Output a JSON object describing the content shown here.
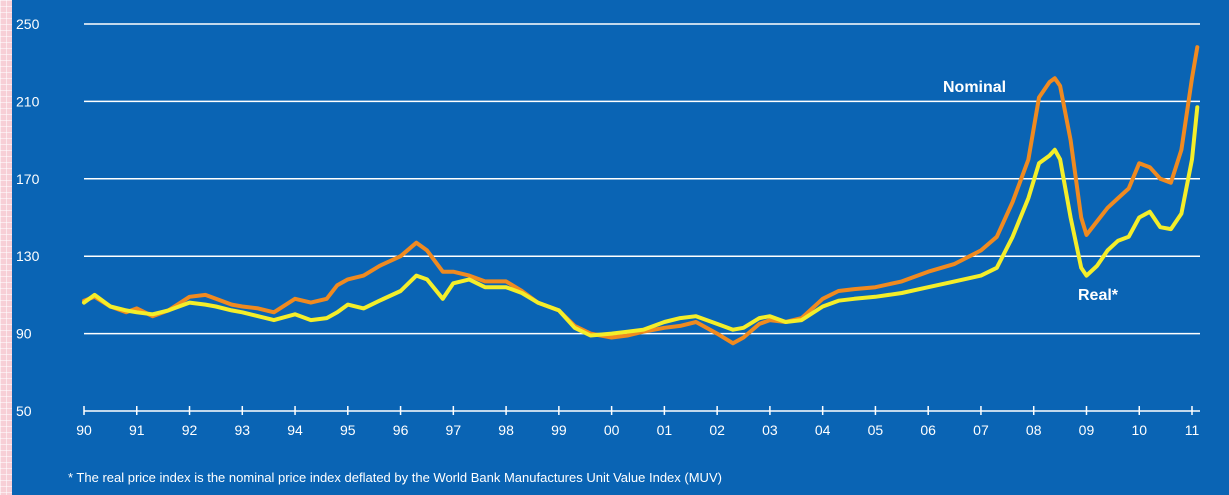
{
  "chart_data": {
    "type": "line",
    "xlabel": "",
    "ylabel": "",
    "xlim": [
      1990,
      2011
    ],
    "ylim": [
      50,
      250
    ],
    "x_ticks": [
      1990,
      1991,
      1992,
      1993,
      1994,
      1995,
      1996,
      1997,
      1998,
      1999,
      2000,
      2001,
      2002,
      2003,
      2004,
      2005,
      2006,
      2007,
      2008,
      2009,
      2010,
      2011
    ],
    "x_tick_labels": [
      "90",
      "91",
      "92",
      "93",
      "94",
      "95",
      "96",
      "97",
      "98",
      "99",
      "00",
      "01",
      "02",
      "03",
      "04",
      "05",
      "06",
      "07",
      "08",
      "09",
      "10",
      "11"
    ],
    "y_ticks": [
      50,
      90,
      130,
      170,
      210,
      250
    ],
    "y_tick_labels": [
      "50",
      "90",
      "130",
      "170",
      "210",
      "250"
    ],
    "grid": "horizontal",
    "series": [
      {
        "name": "Nominal",
        "color": "#f08a20",
        "x": [
          1990.0,
          1990.2,
          1990.5,
          1990.8,
          1991.0,
          1991.3,
          1991.6,
          1992.0,
          1992.3,
          1992.5,
          1992.8,
          1993.0,
          1993.3,
          1993.6,
          1994.0,
          1994.3,
          1994.6,
          1994.8,
          1995.0,
          1995.3,
          1995.6,
          1996.0,
          1996.3,
          1996.5,
          1996.8,
          1997.0,
          1997.3,
          1997.6,
          1998.0,
          1998.3,
          1998.6,
          1999.0,
          1999.3,
          1999.6,
          2000.0,
          2000.3,
          2000.6,
          2001.0,
          2001.3,
          2001.6,
          2002.0,
          2002.3,
          2002.5,
          2002.8,
          2003.0,
          2003.3,
          2003.6,
          2004.0,
          2004.3,
          2004.6,
          2005.0,
          2005.5,
          2006.0,
          2006.5,
          2007.0,
          2007.3,
          2007.6,
          2007.9,
          2008.1,
          2008.3,
          2008.4,
          2008.5,
          2008.7,
          2008.9,
          2009.0,
          2009.2,
          2009.4,
          2009.6,
          2009.8,
          2010.0,
          2010.2,
          2010.4,
          2010.6,
          2010.8,
          2011.0,
          2011.1
        ],
        "y": [
          107,
          109,
          104,
          101,
          103,
          99,
          102,
          109,
          110,
          108,
          105,
          104,
          103,
          101,
          108,
          106,
          108,
          115,
          118,
          120,
          125,
          130,
          137,
          133,
          122,
          122,
          120,
          117,
          117,
          112,
          106,
          102,
          94,
          90,
          88,
          89,
          91,
          93,
          94,
          96,
          90,
          85,
          88,
          95,
          97,
          96,
          98,
          108,
          112,
          113,
          114,
          117,
          122,
          126,
          133,
          140,
          158,
          180,
          212,
          220,
          222,
          218,
          190,
          150,
          141,
          148,
          155,
          160,
          165,
          178,
          176,
          170,
          168,
          185,
          222,
          238
        ]
      },
      {
        "name": "Real*",
        "color": "#f4ee2a",
        "x": [
          1990.0,
          1990.2,
          1990.5,
          1990.8,
          1991.0,
          1991.3,
          1991.6,
          1992.0,
          1992.3,
          1992.5,
          1992.8,
          1993.0,
          1993.3,
          1993.6,
          1994.0,
          1994.3,
          1994.6,
          1994.8,
          1995.0,
          1995.3,
          1995.6,
          1996.0,
          1996.3,
          1996.5,
          1996.8,
          1997.0,
          1997.3,
          1997.6,
          1998.0,
          1998.3,
          1998.6,
          1999.0,
          1999.3,
          1999.6,
          2000.0,
          2000.3,
          2000.6,
          2001.0,
          2001.3,
          2001.6,
          2002.0,
          2002.3,
          2002.5,
          2002.8,
          2003.0,
          2003.3,
          2003.6,
          2004.0,
          2004.3,
          2004.6,
          2005.0,
          2005.5,
          2006.0,
          2006.5,
          2007.0,
          2007.3,
          2007.6,
          2007.9,
          2008.1,
          2008.3,
          2008.4,
          2008.5,
          2008.7,
          2008.9,
          2009.0,
          2009.2,
          2009.4,
          2009.6,
          2009.8,
          2010.0,
          2010.2,
          2010.4,
          2010.6,
          2010.8,
          2011.0,
          2011.1
        ],
        "y": [
          106,
          110,
          104,
          102,
          101,
          100,
          102,
          106,
          105,
          104,
          102,
          101,
          99,
          97,
          100,
          97,
          98,
          101,
          105,
          103,
          107,
          112,
          120,
          118,
          108,
          116,
          118,
          114,
          114,
          111,
          106,
          102,
          93,
          89,
          90,
          91,
          92,
          96,
          98,
          99,
          95,
          92,
          93,
          98,
          99,
          96,
          97,
          104,
          107,
          108,
          109,
          111,
          114,
          117,
          120,
          124,
          140,
          160,
          178,
          182,
          185,
          180,
          150,
          124,
          120,
          125,
          133,
          138,
          140,
          150,
          153,
          145,
          144,
          152,
          180,
          207
        ]
      }
    ],
    "annotations": [
      {
        "text": "Nominal",
        "near": "2008 peak, left"
      },
      {
        "text": "Real*",
        "near": "2009, below-right"
      }
    ]
  },
  "footnote": "* The real price index is the nominal price index deflated by the World Bank Manufactures Unit Value Index (MUV)"
}
